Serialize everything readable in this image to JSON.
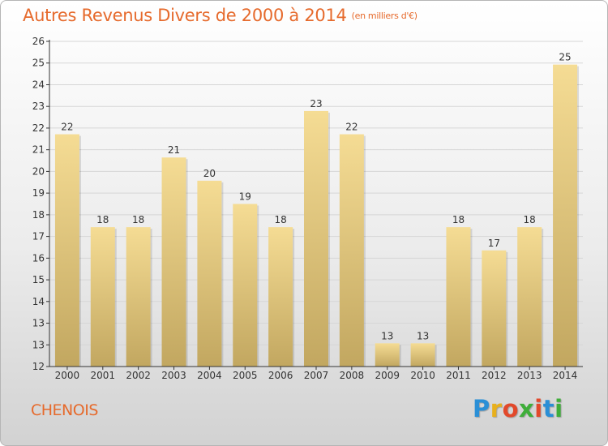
{
  "header": {
    "title": "Autres Revenus Divers de 2000 à 2014",
    "unit": "(en milliers d'€)"
  },
  "footer": {
    "commune": "CHENOIS",
    "logo": {
      "letters": [
        "P",
        "r",
        "o",
        "x",
        "i",
        "t",
        "i"
      ],
      "colors": [
        "#2a8fd6",
        "#e8b01c",
        "#e2492b",
        "#3fae3a",
        "#e2492b",
        "#2a8fd6",
        "#3fae3a"
      ]
    }
  },
  "colors": {
    "bar_light": "#f5dc94",
    "bar_dark": "#c2a760",
    "title": "#e66a2c",
    "grid": "#d6d6d6",
    "axis": "#333333"
  },
  "chart_data": {
    "type": "bar",
    "title": "Autres Revenus Divers de 2000 à 2014",
    "ylabel": "",
    "xlabel": "",
    "categories": [
      "2000",
      "2001",
      "2002",
      "2003",
      "2004",
      "2005",
      "2006",
      "2007",
      "2008",
      "2009",
      "2010",
      "2011",
      "2012",
      "2013",
      "2014"
    ],
    "values": [
      22,
      18,
      18,
      21,
      20,
      19,
      18,
      23,
      22,
      13,
      13,
      18,
      17,
      18,
      25
    ],
    "data_labels": [
      "22",
      "18",
      "18",
      "21",
      "20",
      "19",
      "18",
      "23",
      "22",
      "13",
      "13",
      "18",
      "17",
      "18",
      "25"
    ],
    "yticks": [
      "12",
      "13",
      "13",
      "14",
      "15",
      "16",
      "17",
      "18",
      "19",
      "20",
      "21",
      "22",
      "23",
      "24",
      "25",
      "26"
    ],
    "ylim": [
      12,
      26
    ],
    "grid": true,
    "legend": "none"
  }
}
